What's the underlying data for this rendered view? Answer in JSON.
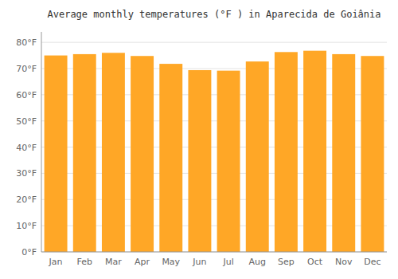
{
  "chart_data": {
    "type": "bar",
    "title": "Average monthly temperatures (°F ) in Aparecida de Goiânia",
    "categories": [
      "Jan",
      "Feb",
      "Mar",
      "Apr",
      "May",
      "Jun",
      "Jul",
      "Aug",
      "Sep",
      "Oct",
      "Nov",
      "Dec"
    ],
    "values": [
      75.0,
      75.5,
      76.0,
      74.8,
      71.8,
      69.4,
      69.2,
      72.7,
      76.3,
      76.8,
      75.5,
      74.8
    ],
    "color": "#FFA726",
    "ylim": [
      0,
      84
    ],
    "yticks": [
      {
        "value": 0,
        "label": "0°F"
      },
      {
        "value": 10,
        "label": "10°F"
      },
      {
        "value": 20,
        "label": "20°F"
      },
      {
        "value": 30,
        "label": "30°F"
      },
      {
        "value": 40,
        "label": "40°F"
      },
      {
        "value": 50,
        "label": "50°F"
      },
      {
        "value": 60,
        "label": "60°F"
      },
      {
        "value": 70,
        "label": "70°F"
      },
      {
        "value": 80,
        "label": "80°F"
      }
    ],
    "grid": true
  }
}
